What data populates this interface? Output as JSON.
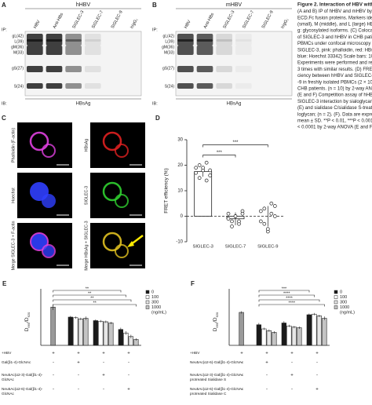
{
  "caption": {
    "title": "Figure 2. Interaction of HBV with SIGLE",
    "lines": [
      "(A and B) IP of hHBV and mHBV by SIGL",
      "ECD.Fc fusion proteins. Markers identify",
      "(small), M (middle), and L (large) HBsAg",
      "g: glycosylated isoforms. (C) Colocaliz",
      "of SIGLEC-3 and hHBV in CHB patients'",
      "PBMCs under confocal microscopy (gree",
      "SIGLEC-3, pink: phalloidin, red: HBsAg,",
      "blue: Hoechst 33342) Scale bars: 10 μm.",
      "Experiments were performed and repeat",
      "3 times with similar results. (D) FRET ef",
      "ciency between hHBV and SIGLEC-3, -7, a",
      "-9 in freshly isolated PBMCs (2 × 10⁵) fro",
      "CHB patients. (n = 10) by 2-way ANOVA.",
      "(E and F) Competition assay of hHBV and",
      "SIGLEC-3 interaction by sialoglycan. (n =",
      "(E) and sialidase C/sialidase S-treated si",
      "loglycan; (n = 2). (F). Data are expressed",
      "mean ± SD. **P < 0.01, ***P < 0.001, **",
      "< 0.0001 by 2-way ANOVA (E and F)"
    ]
  },
  "blots": [
    {
      "label": "A",
      "title": "hHBV",
      "ip": "IP:",
      "ib": "IB:",
      "target": "HBsAg",
      "lanes": [
        "HBV",
        "Anti-HBs",
        "SIGLEC-3",
        "SIGLEC-7",
        "SIGLEC-9",
        "hIgG₁"
      ],
      "markers": [
        "gL(42)",
        "L(39)",
        "gM(36)",
        "M(33)",
        "gS(27)",
        "S(24)"
      ]
    },
    {
      "label": "B",
      "title": "mHBV",
      "ip": "IP:",
      "ib": "IB:",
      "target": "HBsAg",
      "lanes": [
        "HBV",
        "Anti-HBs",
        "SIGLEC-3",
        "SIGLEC-7",
        "SIGLEC-9",
        "hIgG₁"
      ],
      "markers": [
        "gL(42)",
        "L(39)",
        "gM(36)",
        "M(33)",
        "gS(27)",
        "S(24)"
      ]
    }
  ],
  "microscopy": {
    "label": "C",
    "images": [
      "Phalloidin (F-actin)",
      "HBsAg",
      "Hoechst",
      "SIGLEC-3",
      "Merge SIGLEC-3 + F-actin",
      "Merge HBsAg + SIGLEC-3"
    ]
  },
  "chart_data": [
    {
      "type": "bar",
      "label": "D",
      "y_label": "FRET efficiency (%)",
      "categories": [
        "SIGLEC-3",
        "SIGLEC-7",
        "SIGLEC-9"
      ],
      "values": [
        17.5,
        -1,
        0
      ],
      "errors": [
        2,
        2.5,
        4
      ],
      "points": [
        [
          19,
          20,
          18,
          21,
          16,
          17,
          15,
          19,
          14,
          18
        ],
        [
          1,
          -2,
          0,
          -3,
          2,
          -1,
          -4,
          0,
          -2,
          1
        ],
        [
          2,
          -3,
          -6,
          5,
          0,
          -2,
          3,
          -5,
          1,
          4
        ]
      ],
      "ylim": [
        -10,
        30
      ],
      "yticks": [
        -10,
        0,
        10,
        20,
        30
      ],
      "significance": [
        "***",
        "***"
      ]
    },
    {
      "type": "grouped_bar",
      "label": "E",
      "y_label": [
        "D",
        "665",
        "/D",
        "620"
      ],
      "ylim": [
        0,
        0.8
      ],
      "first_color": "#9a9a9a",
      "legend": [
        {
          "name": "0",
          "color": "#1a1a1a"
        },
        {
          "name": "100",
          "color": "#ffffff"
        },
        {
          "name": "300",
          "color": "#e6e6e6"
        },
        {
          "name": "1000",
          "color": "#c4c4c4"
        }
      ],
      "legend_unit": "(ng/mL)",
      "groups": [
        {
          "values": [
            0.65
          ],
          "errors": [
            0.05
          ]
        },
        {
          "values": [
            0.48,
            0.47,
            0.45,
            0.46
          ],
          "errors": [
            0.02,
            0.02,
            0.02,
            0.03
          ]
        },
        {
          "values": [
            0.42,
            0.41,
            0.4,
            0.38
          ],
          "errors": [
            0.02,
            0.02,
            0.02,
            0.02
          ]
        },
        {
          "values": [
            0.27,
            0.21,
            0.15,
            0.1
          ],
          "errors": [
            0.03,
            0.03,
            0.03,
            0.02
          ]
        }
      ],
      "significance": [
        "**",
        "**",
        "**",
        "**"
      ],
      "conditions": [
        {
          "lines": [
            "+HBV"
          ],
          "signs": [
            "+",
            "+",
            "+",
            "+"
          ]
        },
        {
          "lines": [
            "Gal(β1-4)-GlcNAc"
          ],
          "signs": [
            "-",
            "+",
            "-",
            "-"
          ]
        },
        {
          "lines": [
            "Neu5Ac(α2-3)-Gal(β1-4)-",
            "GlcNAc"
          ],
          "signs": [
            "-",
            "-",
            "+",
            "-"
          ]
        },
        {
          "lines": [
            "Neu5Ac(α2-6)-Gal(β1-4)-",
            "GlcNAc"
          ],
          "signs": [
            "-",
            "-",
            "-",
            "+"
          ]
        }
      ]
    },
    {
      "type": "grouped_bar",
      "label": "F",
      "y_label": [
        "D",
        "665",
        "/D",
        "620"
      ],
      "ylim": [
        0,
        0.8
      ],
      "first_color": "#9a9a9a",
      "legend": [
        {
          "name": "0",
          "color": "#1a1a1a"
        },
        {
          "name": "100",
          "color": "#ffffff"
        },
        {
          "name": "300",
          "color": "#e6e6e6"
        },
        {
          "name": "1000",
          "color": "#c4c4c4"
        }
      ],
      "legend_unit": "(ng/mL)",
      "groups": [
        {
          "values": [
            0.56
          ],
          "errors": [
            0.02
          ]
        },
        {
          "values": [
            0.35,
            0.28,
            0.25,
            0.22
          ],
          "errors": [
            0.03,
            0.02,
            0.02,
            0.02
          ]
        },
        {
          "values": [
            0.38,
            0.33,
            0.31,
            0.3
          ],
          "errors": [
            0.03,
            0.02,
            0.02,
            0.02
          ]
        },
        {
          "values": [
            0.52,
            0.53,
            0.5,
            0.46
          ],
          "errors": [
            0.02,
            0.02,
            0.02,
            0.03
          ]
        }
      ],
      "significance": [
        "***",
        "****",
        "****",
        "****"
      ],
      "conditions": [
        {
          "lines": [
            "+HBV"
          ],
          "signs": [
            "+",
            "+",
            "+",
            "+"
          ]
        },
        {
          "lines": [
            "Neu5Ac(α2-6)-Gal(β1-4)-GlcNAc"
          ],
          "signs": [
            "-",
            "+",
            "-",
            "-"
          ]
        },
        {
          "lines": [
            "Neu5Ac(α2-3)-Gal(β1-4)-GlcNAc",
            "protreated Sialidase S"
          ],
          "signs": [
            "-",
            "-",
            "+",
            "-"
          ]
        },
        {
          "lines": [
            "Neu5Ac(α2-6)-Gal(β1-4)-GlcNAc",
            "protreated Sialidase C"
          ],
          "signs": [
            "-",
            "-",
            "-",
            "+"
          ]
        }
      ]
    }
  ]
}
